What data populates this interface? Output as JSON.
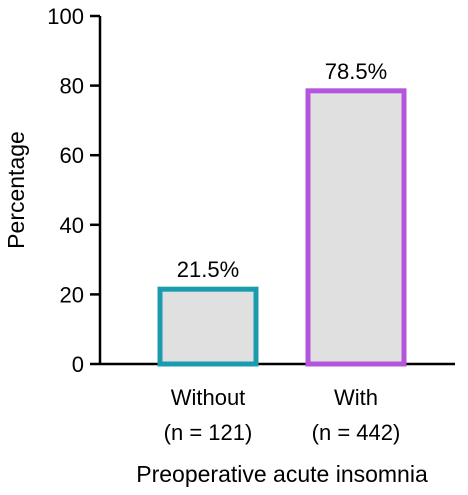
{
  "chart_data": {
    "type": "bar",
    "categories": [
      "Without",
      "With"
    ],
    "category_sublabels": [
      "(n = 121)",
      "(n = 442)"
    ],
    "values": [
      21.5,
      78.5
    ],
    "data_labels": [
      "21.5%",
      "78.5%"
    ],
    "xlabel": "Preoperative acute insomnia",
    "ylabel": "Percentage",
    "ylim": [
      0,
      100
    ],
    "yticks": [
      0,
      20,
      40,
      60,
      80,
      100
    ],
    "grid": false,
    "colors": {
      "bar_fill": "#e0e0e0",
      "bar_edges": [
        "#1a9bb0",
        "#b455de"
      ],
      "axis": "#000000"
    }
  }
}
